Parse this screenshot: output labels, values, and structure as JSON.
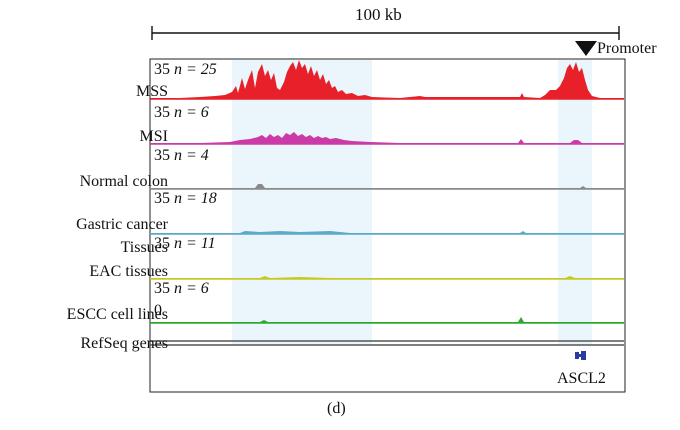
{
  "scale_bar": {
    "label": "100 kb"
  },
  "promoter": {
    "label": "Promoter"
  },
  "tracks": [
    {
      "name": "MSS",
      "max": "35",
      "n_label": "n = 25",
      "color": "#e8202a"
    },
    {
      "name": "MSI",
      "max": "35",
      "n_label": "n = 6",
      "color": "#cc3aa8"
    },
    {
      "name": "Normal colon",
      "max": "35",
      "n_label": "n = 4",
      "color": "#8a8a8a"
    },
    {
      "name": "Gastric cancer",
      "max": "35",
      "n_label": "n = 18",
      "color": "#5aa9c8"
    },
    {
      "name": "Tissues",
      "max": "35",
      "n_label": "n = 11",
      "color": "#c8c822"
    },
    {
      "name": "EAC tissues",
      "max": "",
      "n_label": "",
      "color": "#c8c822"
    },
    {
      "name": "ESCC cell lines",
      "max": "35",
      "n_label": "n = 6",
      "color": "#2fa82f"
    }
  ],
  "zero_label": "0",
  "refseq": {
    "label": "RefSeq genes",
    "gene": "ASCL2",
    "gene_color": "#2a3aa0"
  },
  "panel_label": "(d)"
}
